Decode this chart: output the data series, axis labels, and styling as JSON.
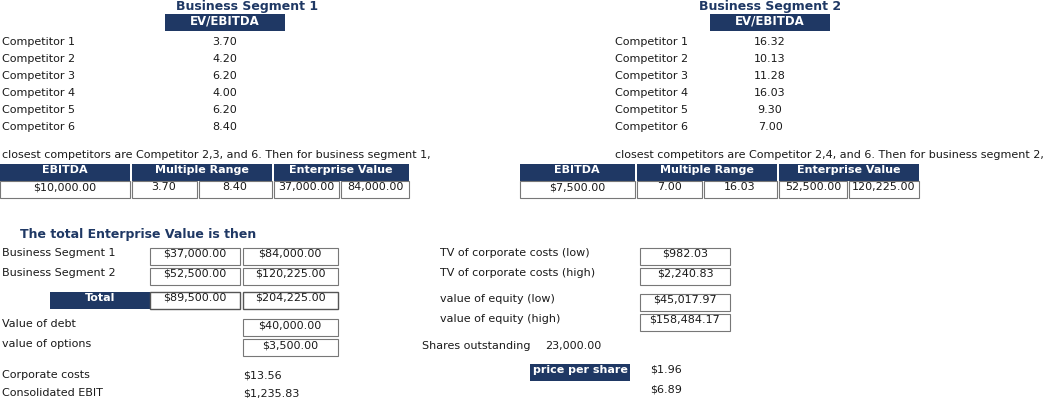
{
  "dark_blue": "#1F3864",
  "text_black": "#1a1a1a",
  "bg_white": "#FFFFFF",
  "seg1_title": "Business Segment 1",
  "seg2_title": "Business Segment 2",
  "ev_ebitda_header": "EV/EBITDA",
  "seg1_competitors": [
    "Competitor 1",
    "Competitor 2",
    "Competitor 3",
    "Competitor 4",
    "Competitor 5",
    "Competitor 6"
  ],
  "seg1_values": [
    "3.70",
    "4.20",
    "6.20",
    "4.00",
    "6.20",
    "8.40"
  ],
  "seg2_competitors": [
    "Competitor 1",
    "Competitor 2",
    "Competitor 3",
    "Competitor 4",
    "Competitor 5",
    "Competitor 6"
  ],
  "seg2_values": [
    "16.32",
    "10.13",
    "11.28",
    "16.03",
    "9.30",
    "7.00"
  ],
  "seg1_note": "closest competitors are Competitor 2,3, and 6. Then for business segment 1,",
  "seg2_note": "closest competitors are Competitor 2,4, and 6. Then for business segment 2,",
  "table1_headers": [
    "EBITDA",
    "Multiple Range",
    "Enterprise Value"
  ],
  "table1_ebitda": "$10,000.00",
  "table1_mult_low": "3.70",
  "table1_mult_high": "8.40",
  "table1_ev_low": "37,000.00",
  "table1_ev_high": "84,000.00",
  "table2_headers": [
    "EBITDA",
    "Multiple Range",
    "Enterprise Value"
  ],
  "table2_ebitda": "$7,500.00",
  "table2_mult_low": "7.00",
  "table2_mult_high": "16.03",
  "table2_ev_low": "52,500.00",
  "table2_ev_high": "120,225.00",
  "total_title": "The total Enterprise Value is then",
  "bs1_label": "Business Segment 1",
  "bs1_low": "$37,000.00",
  "bs1_high": "$84,000.00",
  "bs2_label": "Business Segment 2",
  "bs2_low": "$52,500.00",
  "bs2_high": "$120,225.00",
  "total_label": "Total",
  "total_low": "$89,500.00",
  "total_high": "$204,225.00",
  "tv_corp_low_label": "TV of corporate costs (low)",
  "tv_corp_high_label": "TV of corporate costs (high)",
  "tv_corp_low_val": "$982.03",
  "tv_corp_high_val": "$2,240.83",
  "eq_low_label": "value of equity (low)",
  "eq_high_label": "value of equity (high)",
  "eq_low_val": "$45,017.97",
  "eq_high_val": "$158,484.17",
  "debt_label": "Value of debt",
  "debt_val": "$40,000.00",
  "options_label": "value of options",
  "options_val": "$3,500.00",
  "corp_costs_label": "Corporate costs",
  "corp_costs_val": "$13.56",
  "consol_ebit_label": "Consolidated EBIT",
  "consol_ebit_val": "$1,235.83",
  "shares_label": "Shares outstanding",
  "shares_val": "23,000.00",
  "pps_label": "price per share",
  "pps_low": "$1.96",
  "pps_high": "$6.89"
}
